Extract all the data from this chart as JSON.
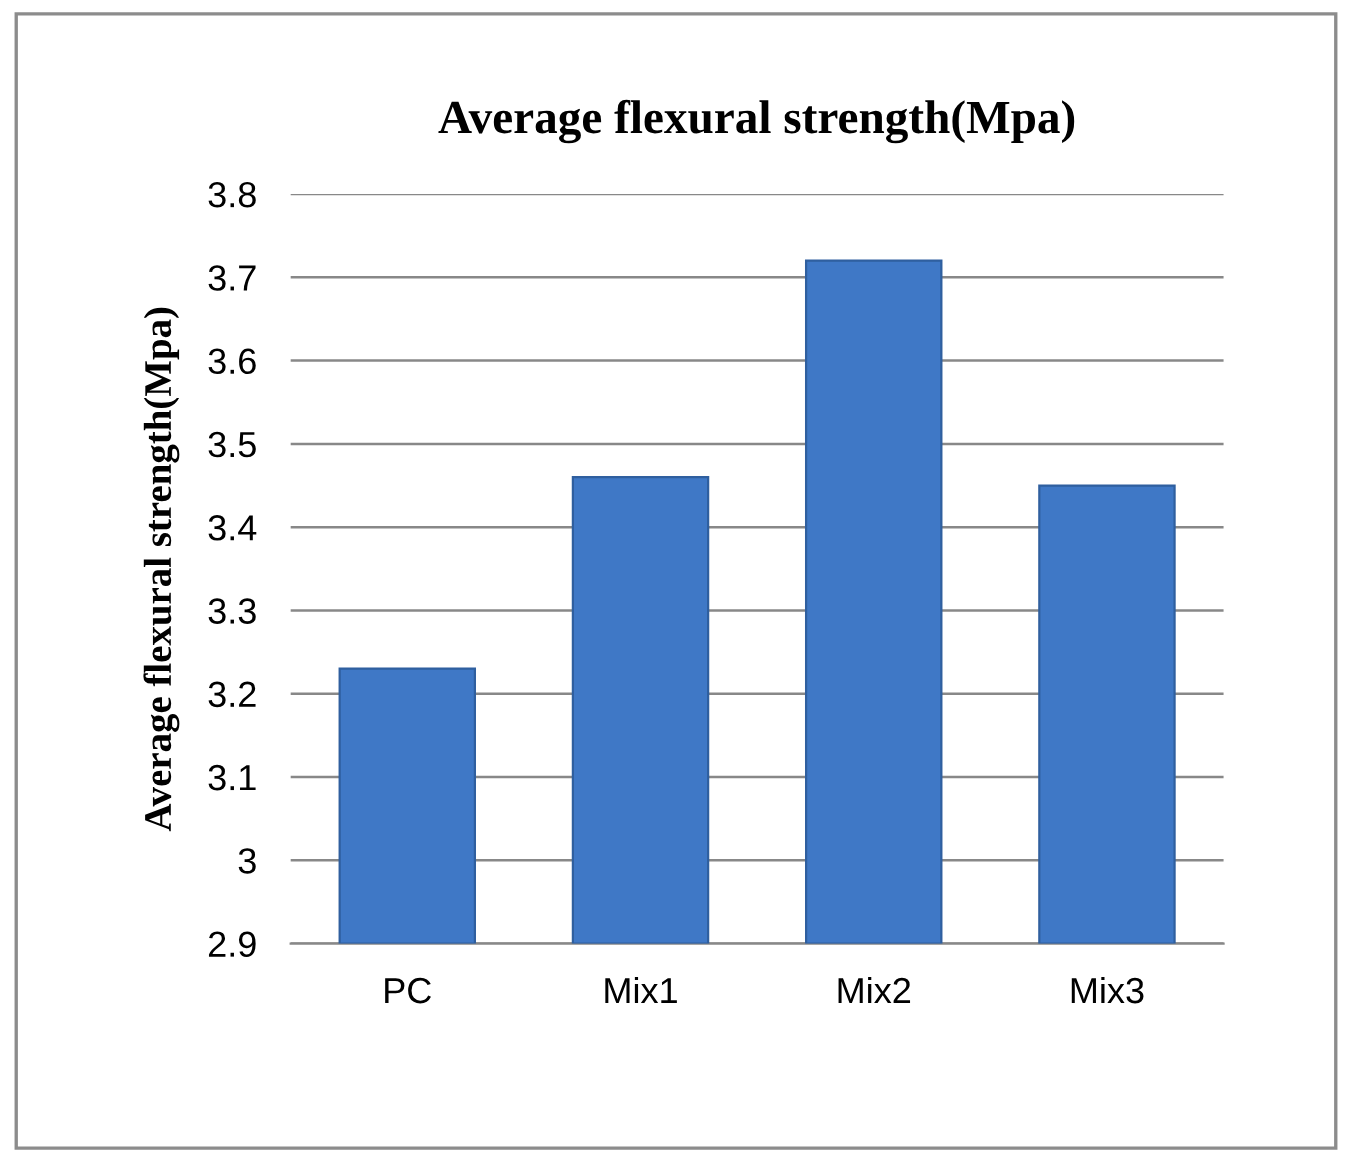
{
  "chart_data": {
    "type": "bar",
    "title": "Average flexural strength(Mpa)",
    "ylabel": "Average flexural strength(Mpa)",
    "categories": [
      "PC",
      "Mix1",
      "Mix2",
      "Mix3"
    ],
    "values": [
      3.23,
      3.46,
      3.72,
      3.45
    ],
    "color": "#3f78c6",
    "ylim": [
      2.9,
      3.8
    ],
    "yticks": [
      {
        "value": 2.9,
        "label": "2.9"
      },
      {
        "value": 3.0,
        "label": "3"
      },
      {
        "value": 3.1,
        "label": "3.1"
      },
      {
        "value": 3.2,
        "label": "3.2"
      },
      {
        "value": 3.3,
        "label": "3.3"
      },
      {
        "value": 3.4,
        "label": "3.4"
      },
      {
        "value": 3.5,
        "label": "3.5"
      },
      {
        "value": 3.6,
        "label": "3.6"
      },
      {
        "value": 3.7,
        "label": "3.7"
      },
      {
        "value": 3.8,
        "label": "3.8"
      }
    ],
    "grid": "y"
  }
}
